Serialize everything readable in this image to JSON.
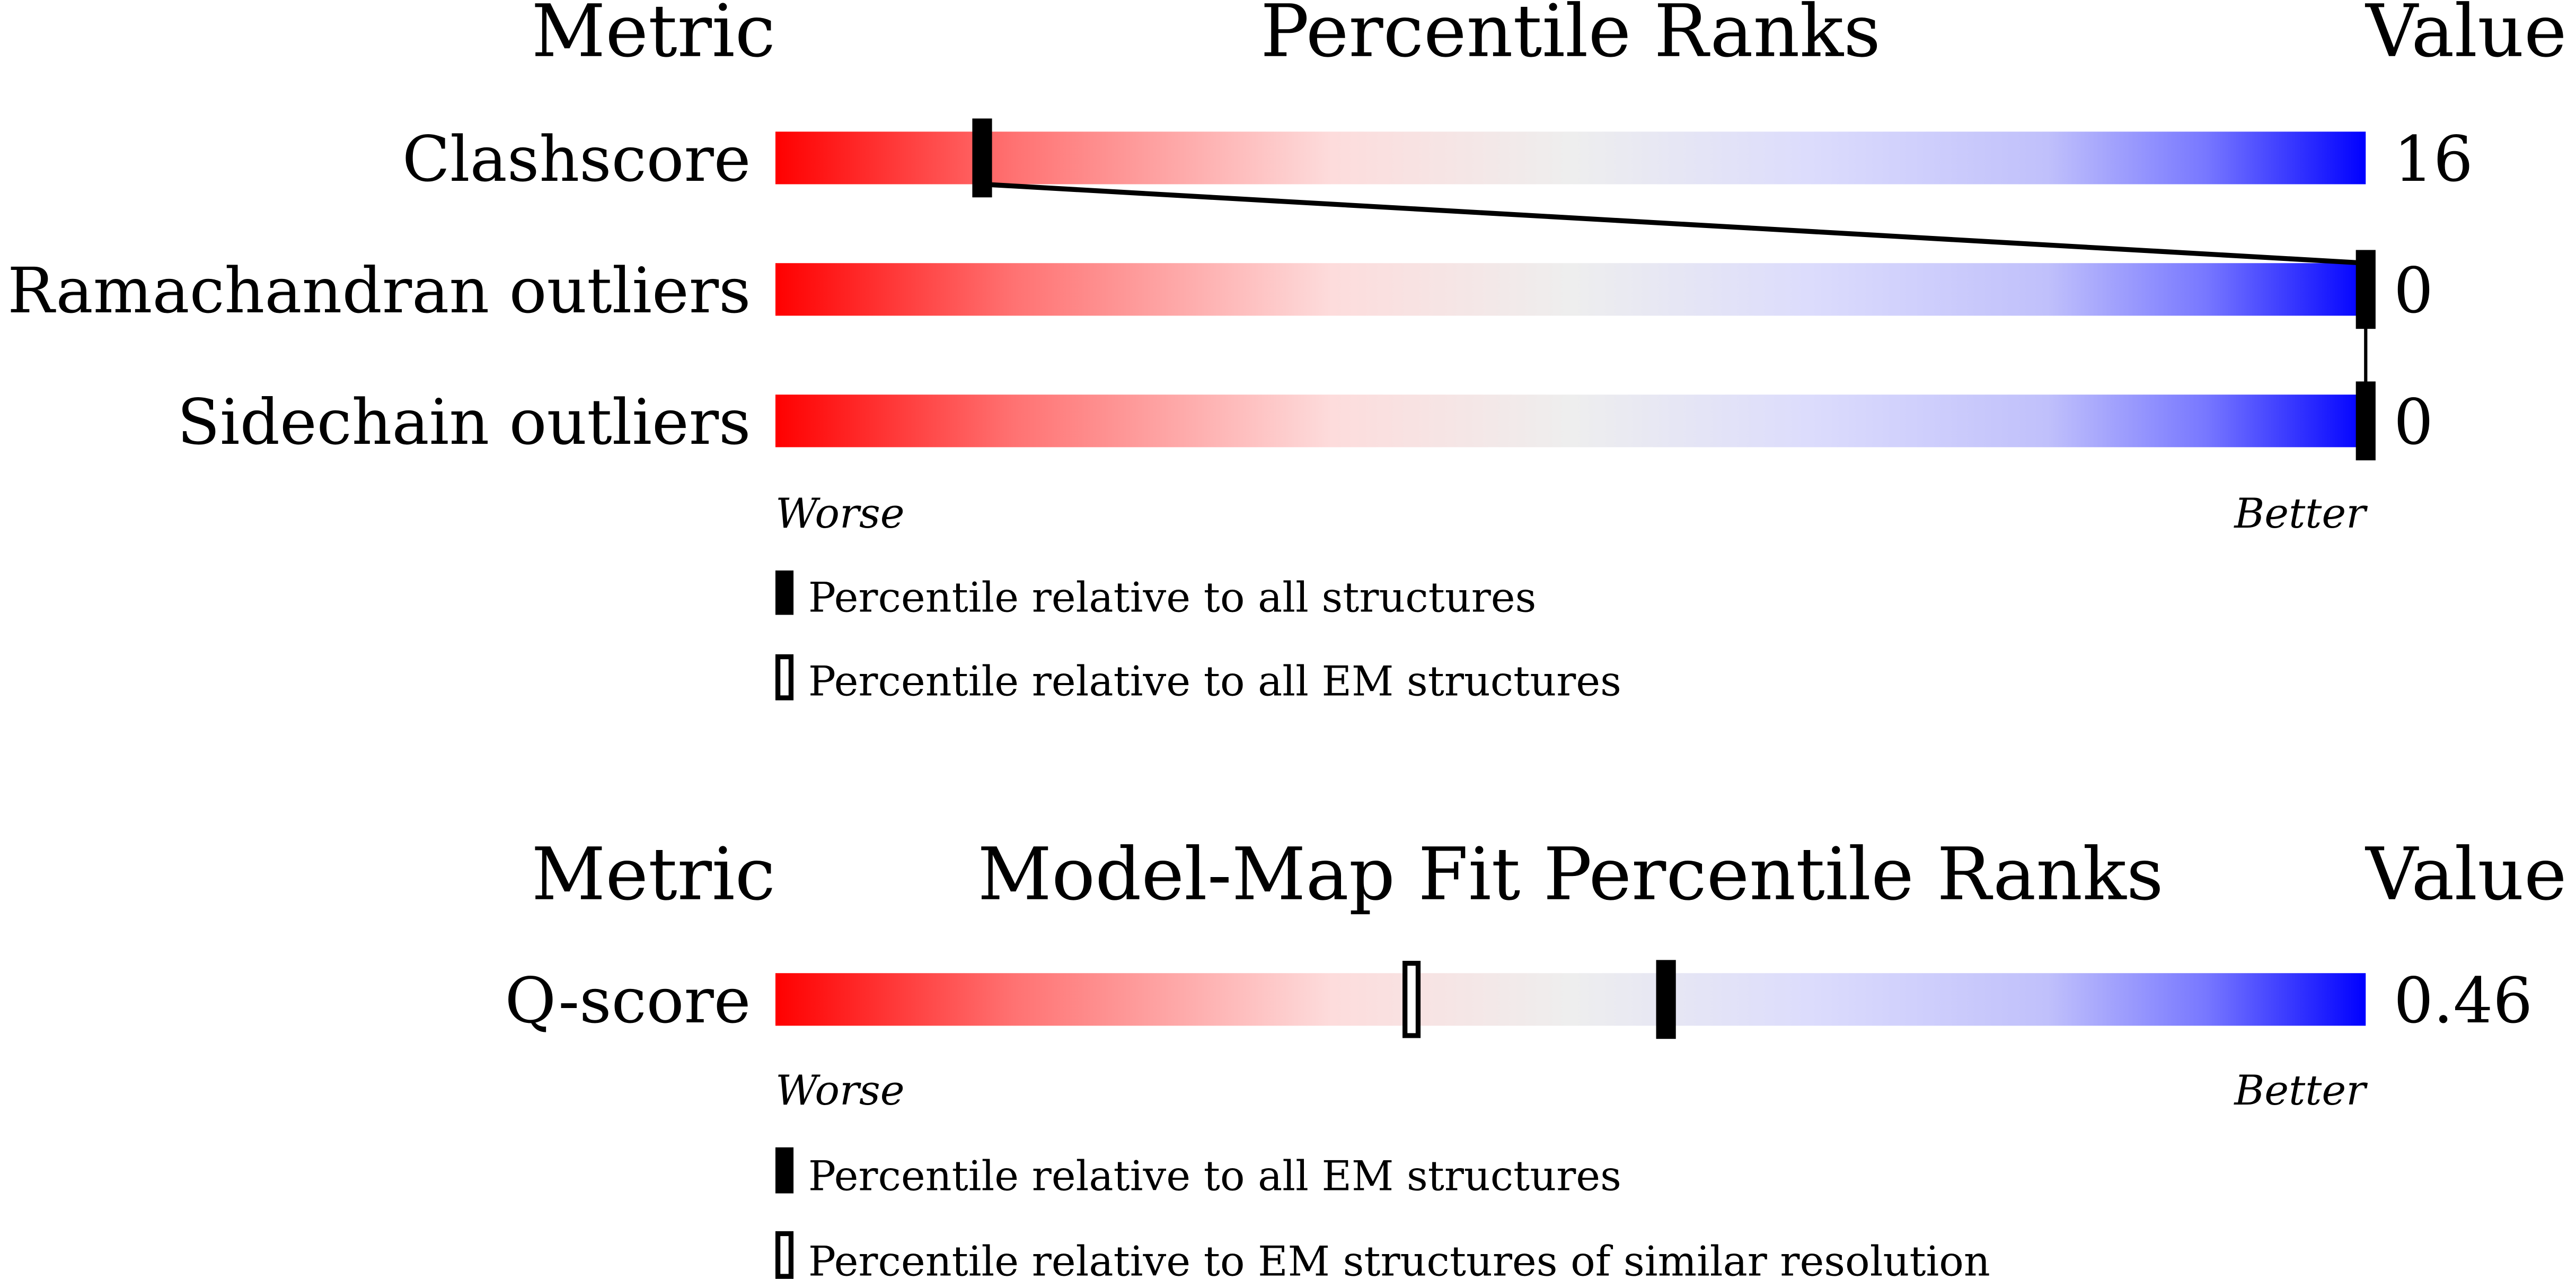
{
  "chart_data": [
    {
      "type": "bar",
      "title": "Percentile Ranks",
      "header_metric": "Metric",
      "header_value": "Value",
      "worse_label": "Worse",
      "better_label": "Better",
      "metrics": [
        {
          "name": "Clashscore",
          "value": "16",
          "percentile_all": 13
        },
        {
          "name": "Ramachandran outliers",
          "value": "0",
          "percentile_all": 100
        },
        {
          "name": "Sidechain outliers",
          "value": "0",
          "percentile_all": 100
        }
      ],
      "legend": [
        {
          "marker": "filled",
          "label": "Percentile relative to all structures"
        },
        {
          "marker": "open",
          "label": "Percentile relative to all EM structures"
        }
      ],
      "xlim": [
        0,
        100
      ]
    },
    {
      "type": "bar",
      "title": "Model-Map Fit Percentile Ranks",
      "header_metric": "Metric",
      "header_value": "Value",
      "worse_label": "Worse",
      "better_label": "Better",
      "metrics": [
        {
          "name": "Q-score",
          "value": "0.46",
          "percentile_all": 56,
          "percentile_similar": 40
        }
      ],
      "legend": [
        {
          "marker": "filled",
          "label": "Percentile relative to all EM structures"
        },
        {
          "marker": "open",
          "label": "Percentile relative to EM structures of similar resolution"
        }
      ],
      "xlim": [
        0,
        100
      ]
    }
  ],
  "colors": {
    "worse": "#ff0000",
    "better": "#0000ff",
    "mid": "#eeeeee"
  }
}
